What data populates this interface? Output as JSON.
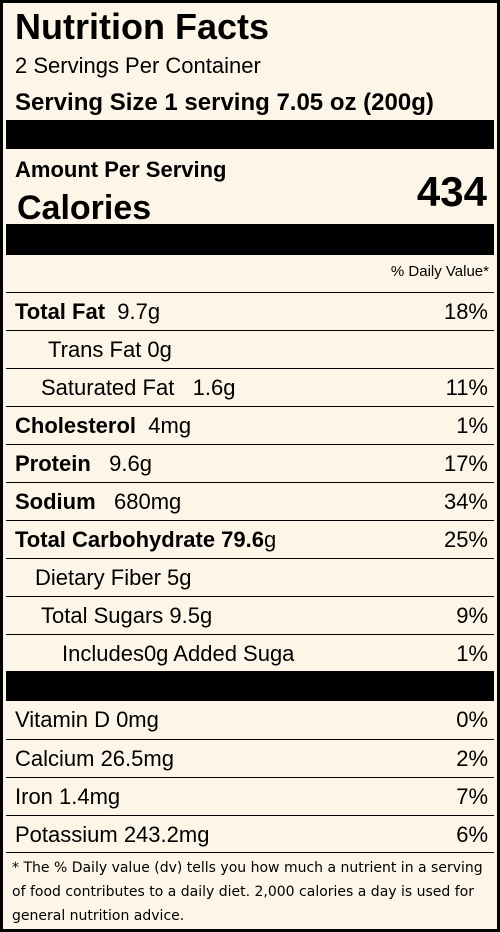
{
  "header": {
    "title": "Nutrition Facts",
    "servings": "2 Servings Per Container",
    "serving_size": "Serving Size  1 serving 7.05 oz (200g)"
  },
  "calories": {
    "amount_label": "Amount Per Serving",
    "label": "Calories",
    "value": "434"
  },
  "daily_value_header": "% Daily Value*",
  "nutrients": [
    {
      "bold": "Total Fat",
      "rest": "  9.7g",
      "dv": "18%"
    },
    {
      "bold": "",
      "rest": "Trans Fat 0g",
      "dv": ""
    },
    {
      "bold": "",
      "rest": "Saturated Fat   1.6g",
      "dv": "11%"
    },
    {
      "bold": "Cholesterol",
      "rest": "  4mg",
      "dv": "1%"
    },
    {
      "bold": "Protein",
      "rest": "   9.6g",
      "dv": "17%"
    },
    {
      "bold": "Sodium",
      "rest": "   680mg",
      "dv": "34%"
    },
    {
      "bold": "Total Carbohydrate 79.6",
      "rest": "g",
      "dv": "25%"
    },
    {
      "bold": "",
      "rest": "Dietary Fiber 5g",
      "dv": ""
    },
    {
      "bold": "",
      "rest": "Total Sugars 9.5g",
      "dv": "9%"
    },
    {
      "bold": "",
      "rest": "Includes0g Added Suga",
      "dv": "1%"
    }
  ],
  "vitamins": [
    {
      "name": "Vitamin D 0mg",
      "dv": "0%"
    },
    {
      "name": "Calcium 26.5mg",
      "dv": "2%"
    },
    {
      "name": "Iron 1.4mg",
      "dv": "7%"
    },
    {
      "name": "Potassium 243.2mg",
      "dv": "6%"
    }
  ],
  "footnote": "* The % Daily value (dv) tells you how much a nutrient in a serving of food contributes to a daily diet. 2,000 calories a day is used for general nutrition advice."
}
